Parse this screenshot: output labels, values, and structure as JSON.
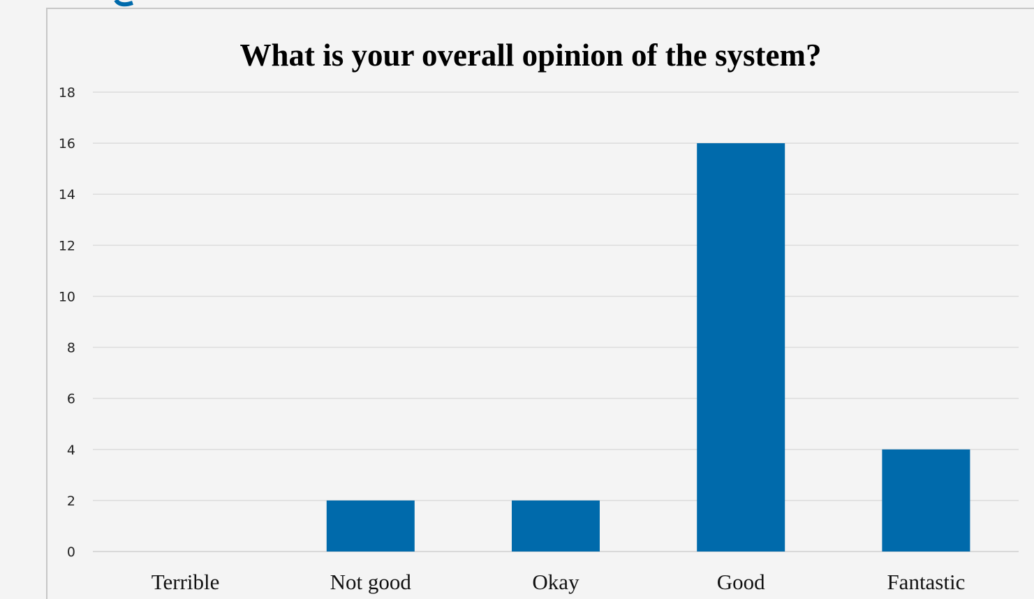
{
  "chart_data": {
    "type": "bar",
    "title": "What is your overall opinion of the system?",
    "xlabel": "",
    "ylabel": "",
    "categories": [
      "Terrible",
      "Not good",
      "Okay",
      "Good",
      "Fantastic"
    ],
    "values": [
      0,
      2,
      2,
      16,
      4
    ],
    "ylim": [
      0,
      18
    ],
    "yticks": [
      0,
      2,
      4,
      6,
      8,
      10,
      12,
      14,
      16,
      18
    ],
    "grid": true,
    "legend": "none",
    "bar_color": "#006aab",
    "background_color": "#f4f4f4"
  }
}
